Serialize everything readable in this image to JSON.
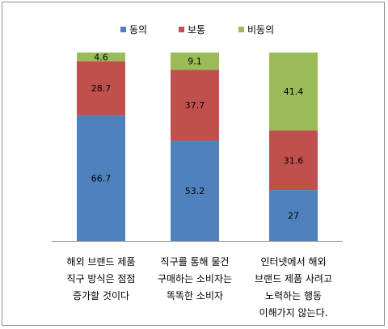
{
  "chart_data": {
    "type": "bar",
    "stacked": true,
    "categories": [
      [
        "해외 브랜드 제품",
        "직구 방식은 점점",
        "증가할 것이다"
      ],
      [
        "직구를 통해 물건",
        "구매하는 소비자는",
        "똑똑한 소비자"
      ],
      [
        "인터넷에서 해외",
        "브랜드 제품 사려고",
        "노력하는 행동",
        "이해가지 않는다."
      ]
    ],
    "series": [
      {
        "name": "동의",
        "color": "#4f81bd",
        "values": [
          66.7,
          53.2,
          27
        ]
      },
      {
        "name": "보통",
        "color": "#c0504d",
        "values": [
          28.7,
          37.7,
          31.6
        ]
      },
      {
        "name": "비동의",
        "color": "#9bbb59",
        "values": [
          4.6,
          9.1,
          41.4
        ]
      }
    ],
    "value_labels": [
      [
        "66.7",
        "53.2",
        "27"
      ],
      [
        "28.7",
        "37.7",
        "31.6"
      ],
      [
        "4.6",
        "9.1",
        "41.4"
      ]
    ],
    "ylim": [
      0,
      100
    ],
    "legend": "top",
    "grid": false
  }
}
